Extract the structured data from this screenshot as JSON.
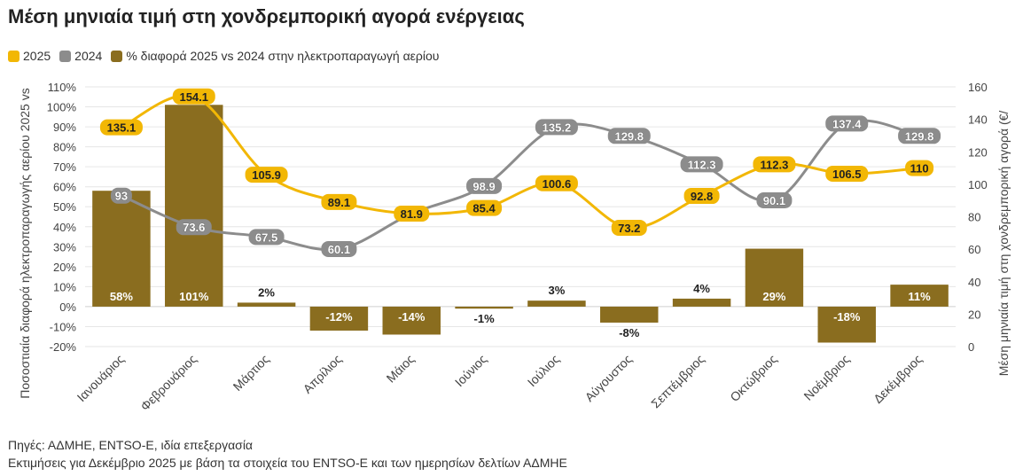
{
  "title": "Μέση μηνιαία τιμή στη χονδρεμπορική αγορά ενέργειας",
  "legend": [
    {
      "label": "2025",
      "color": "#F2B705"
    },
    {
      "label": "2024",
      "color": "#8C8C8C"
    },
    {
      "label": "% διαφορά 2025 vs 2024 στην ηλεκτροπαραγωγή αερίου",
      "color": "#8A6D1F"
    }
  ],
  "notes": {
    "source": "Πηγές: ΑΔΜΗΕ, ENTSO-E, ιδία επεξεργασία",
    "estimate": "Εκτιμήσεις για Δεκέμβριο 2025 με βάση τα στοιχεία του ENTSO-E και των ημερησίων δελτίων ΑΔΜΗΕ"
  },
  "chart_data": {
    "type": "bar+line",
    "categories": [
      "Ιανουάριος",
      "Φεβρουάριος",
      "Μάρτιος",
      "Απρίλιος",
      "Μάιος",
      "Ιούνιος",
      "Ιούλιος",
      "Αύγουστος",
      "Σεπτέμβριος",
      "Οκτώβριος",
      "Νοέμβριος",
      "Δεκέμβριος"
    ],
    "bars": {
      "name": "% διαφορά 2025 vs 2024 στην ηλεκτροπαραγωγή αερίου",
      "values": [
        58,
        101,
        2,
        -12,
        -14,
        -1,
        3,
        -8,
        4,
        29,
        -18,
        11
      ],
      "labels": [
        "58%",
        "101%",
        "2%",
        "-12%",
        "-14%",
        "-1%",
        "3%",
        "-8%",
        "4%",
        "29%",
        "-18%",
        "11%"
      ],
      "color": "#8A6D1F",
      "axis": "left"
    },
    "lines": [
      {
        "name": "2025",
        "values": [
          135.1,
          154.1,
          105.9,
          89.1,
          81.9,
          85.4,
          100.6,
          73.2,
          92.8,
          112.3,
          106.5,
          110
        ],
        "labels": [
          "135.1",
          "154.1",
          "105.9",
          "89.1",
          "81.9",
          "85.4",
          "100.6",
          "73.2",
          "92.8",
          "112.3",
          "106.5",
          "110"
        ],
        "color": "#F2B705",
        "axis": "right"
      },
      {
        "name": "2024",
        "values": [
          93,
          73.6,
          67.5,
          60.1,
          81.9,
          98.9,
          135.2,
          129.8,
          112.3,
          90.1,
          137.4,
          129.8
        ],
        "labels": [
          "93",
          "73.6",
          "67.5",
          "60.1",
          "",
          "98.9",
          "135.2",
          "129.8",
          "112.3",
          "90.1",
          "137.4",
          "129.8"
        ],
        "color": "#8C8C8C",
        "axis": "right"
      }
    ],
    "left_axis": {
      "label": "Ποσοστιαία διαφορά ηλεκτροπαραγωγής αερίου 2025 vs",
      "ylim": [
        -20,
        110
      ],
      "ticks": [
        "-20%",
        "-10%",
        "0%",
        "10%",
        "20%",
        "30%",
        "40%",
        "50%",
        "60%",
        "70%",
        "80%",
        "90%",
        "100%",
        "110%"
      ]
    },
    "right_axis": {
      "label": "Μέση μηνιαία τιμή στη χονδρεμπορική αγορά (€/",
      "ylim": [
        0,
        160
      ],
      "ticks": [
        "0",
        "20",
        "40",
        "60",
        "80",
        "100",
        "120",
        "140",
        "160"
      ]
    },
    "grid": true,
    "legend_position": "top-left"
  }
}
